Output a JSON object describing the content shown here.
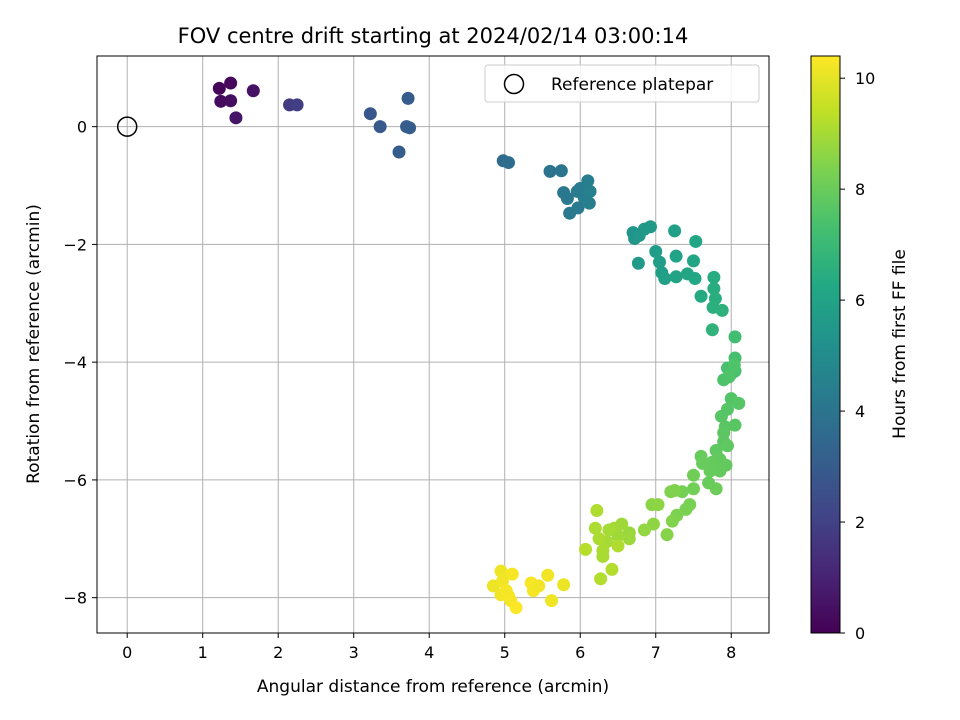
{
  "chart_data": {
    "type": "scatter",
    "title": "FOV centre drift starting at 2024/02/14 03:00:14",
    "xlabel": "Angular distance from reference (arcmin)",
    "ylabel": "Rotation from reference (arcmin)",
    "xlim": [
      -0.4,
      8.5
    ],
    "ylim": [
      -8.6,
      1.2
    ],
    "xticks": [
      0,
      1,
      2,
      3,
      4,
      5,
      6,
      7,
      8
    ],
    "yticks": [
      0,
      -2,
      -4,
      -6,
      -8
    ],
    "grid": true,
    "legend": {
      "label": "Reference platepar",
      "position": "top-right"
    },
    "reference_point": {
      "x": 0,
      "y": 0
    },
    "colorbar": {
      "label": "Hours from first FF file",
      "colormap": "viridis",
      "range": [
        0,
        10.4
      ],
      "ticks": [
        0,
        2,
        4,
        6,
        8,
        10
      ]
    },
    "points": [
      {
        "x": 1.22,
        "y": 0.65,
        "c": 0.1
      },
      {
        "x": 1.37,
        "y": 0.74,
        "c": 0.2
      },
      {
        "x": 1.24,
        "y": 0.43,
        "c": 0.3
      },
      {
        "x": 1.37,
        "y": 0.44,
        "c": 0.4
      },
      {
        "x": 1.67,
        "y": 0.61,
        "c": 0.5
      },
      {
        "x": 1.44,
        "y": 0.15,
        "c": 0.6
      },
      {
        "x": 2.15,
        "y": 0.37,
        "c": 1.8
      },
      {
        "x": 2.25,
        "y": 0.37,
        "c": 1.9
      },
      {
        "x": 3.22,
        "y": 0.22,
        "c": 2.8
      },
      {
        "x": 3.35,
        "y": 0.0,
        "c": 2.9
      },
      {
        "x": 3.72,
        "y": 0.48,
        "c": 3.0
      },
      {
        "x": 3.7,
        "y": 0.0,
        "c": 3.05
      },
      {
        "x": 3.74,
        "y": -0.02,
        "c": 3.1
      },
      {
        "x": 3.6,
        "y": -0.43,
        "c": 3.0
      },
      {
        "x": 4.98,
        "y": -0.58,
        "c": 3.6
      },
      {
        "x": 5.05,
        "y": -0.61,
        "c": 3.7
      },
      {
        "x": 5.6,
        "y": -0.76,
        "c": 4.0
      },
      {
        "x": 5.75,
        "y": -0.75,
        "c": 4.05
      },
      {
        "x": 5.78,
        "y": -1.12,
        "c": 4.1
      },
      {
        "x": 5.83,
        "y": -1.22,
        "c": 4.15
      },
      {
        "x": 5.86,
        "y": -1.47,
        "c": 4.2
      },
      {
        "x": 5.97,
        "y": -1.38,
        "c": 4.25
      },
      {
        "x": 6.0,
        "y": -1.05,
        "c": 4.3
      },
      {
        "x": 6.05,
        "y": -1.2,
        "c": 4.35
      },
      {
        "x": 6.1,
        "y": -0.92,
        "c": 4.4
      },
      {
        "x": 6.12,
        "y": -1.3,
        "c": 4.45
      },
      {
        "x": 6.13,
        "y": -1.1,
        "c": 4.5
      },
      {
        "x": 5.96,
        "y": -1.1,
        "c": 4.3
      },
      {
        "x": 6.7,
        "y": -1.8,
        "c": 5.4
      },
      {
        "x": 6.72,
        "y": -1.9,
        "c": 5.45
      },
      {
        "x": 6.85,
        "y": -1.74,
        "c": 5.5
      },
      {
        "x": 6.93,
        "y": -1.7,
        "c": 5.55
      },
      {
        "x": 6.78,
        "y": -1.85,
        "c": 5.5
      },
      {
        "x": 6.77,
        "y": -2.32,
        "c": 5.6
      },
      {
        "x": 7.0,
        "y": -2.12,
        "c": 5.7
      },
      {
        "x": 7.05,
        "y": -2.3,
        "c": 5.75
      },
      {
        "x": 7.08,
        "y": -2.48,
        "c": 5.8
      },
      {
        "x": 7.12,
        "y": -2.58,
        "c": 5.85
      },
      {
        "x": 7.25,
        "y": -1.77,
        "c": 5.9
      },
      {
        "x": 7.27,
        "y": -2.2,
        "c": 5.95
      },
      {
        "x": 7.27,
        "y": -2.55,
        "c": 6.0
      },
      {
        "x": 7.42,
        "y": -2.5,
        "c": 6.05
      },
      {
        "x": 7.5,
        "y": -2.28,
        "c": 6.1
      },
      {
        "x": 7.53,
        "y": -1.95,
        "c": 6.15
      },
      {
        "x": 7.52,
        "y": -2.58,
        "c": 6.2
      },
      {
        "x": 7.6,
        "y": -2.88,
        "c": 6.3
      },
      {
        "x": 7.77,
        "y": -2.56,
        "c": 6.4
      },
      {
        "x": 7.77,
        "y": -2.75,
        "c": 6.45
      },
      {
        "x": 7.79,
        "y": -2.92,
        "c": 6.5
      },
      {
        "x": 7.76,
        "y": -3.07,
        "c": 6.55
      },
      {
        "x": 7.88,
        "y": -3.12,
        "c": 6.6
      },
      {
        "x": 7.75,
        "y": -3.45,
        "c": 6.7
      },
      {
        "x": 8.05,
        "y": -3.57,
        "c": 7.2
      },
      {
        "x": 8.05,
        "y": -3.93,
        "c": 7.3
      },
      {
        "x": 7.95,
        "y": -4.1,
        "c": 7.35
      },
      {
        "x": 8.0,
        "y": -4.2,
        "c": 7.4
      },
      {
        "x": 8.05,
        "y": -4.15,
        "c": 7.4
      },
      {
        "x": 7.9,
        "y": -4.3,
        "c": 7.45
      },
      {
        "x": 7.97,
        "y": -4.25,
        "c": 7.5
      },
      {
        "x": 8.04,
        "y": -4.05,
        "c": 7.5
      },
      {
        "x": 8.0,
        "y": -4.62,
        "c": 7.55
      },
      {
        "x": 8.1,
        "y": -4.7,
        "c": 7.6
      },
      {
        "x": 7.95,
        "y": -4.8,
        "c": 7.6
      },
      {
        "x": 7.87,
        "y": -4.92,
        "c": 7.65
      },
      {
        "x": 8.05,
        "y": -5.07,
        "c": 7.7
      },
      {
        "x": 7.92,
        "y": -5.1,
        "c": 7.7
      },
      {
        "x": 7.9,
        "y": -5.2,
        "c": 7.75
      },
      {
        "x": 7.9,
        "y": -5.35,
        "c": 7.75
      },
      {
        "x": 7.95,
        "y": -5.42,
        "c": 7.8
      },
      {
        "x": 7.8,
        "y": -5.5,
        "c": 7.8
      },
      {
        "x": 7.85,
        "y": -5.65,
        "c": 7.85
      },
      {
        "x": 7.93,
        "y": -5.75,
        "c": 7.85
      },
      {
        "x": 7.85,
        "y": -5.85,
        "c": 7.9
      },
      {
        "x": 7.75,
        "y": -5.7,
        "c": 7.9
      },
      {
        "x": 7.72,
        "y": -5.85,
        "c": 7.95
      },
      {
        "x": 7.6,
        "y": -5.6,
        "c": 7.95
      },
      {
        "x": 7.62,
        "y": -5.72,
        "c": 8.0
      },
      {
        "x": 7.7,
        "y": -6.05,
        "c": 8.0
      },
      {
        "x": 7.8,
        "y": -6.15,
        "c": 8.05
      },
      {
        "x": 7.5,
        "y": -5.92,
        "c": 8.1
      },
      {
        "x": 7.5,
        "y": -6.15,
        "c": 8.15
      },
      {
        "x": 7.35,
        "y": -6.2,
        "c": 8.2
      },
      {
        "x": 7.45,
        "y": -6.42,
        "c": 8.25
      },
      {
        "x": 7.4,
        "y": -6.5,
        "c": 8.3
      },
      {
        "x": 7.28,
        "y": -6.6,
        "c": 8.35
      },
      {
        "x": 7.2,
        "y": -6.2,
        "c": 8.4
      },
      {
        "x": 7.25,
        "y": -6.18,
        "c": 8.4
      },
      {
        "x": 7.22,
        "y": -6.7,
        "c": 8.45
      },
      {
        "x": 7.15,
        "y": -6.93,
        "c": 8.5
      },
      {
        "x": 6.95,
        "y": -6.42,
        "c": 8.55
      },
      {
        "x": 7.03,
        "y": -6.42,
        "c": 8.6
      },
      {
        "x": 6.97,
        "y": -6.75,
        "c": 8.65
      },
      {
        "x": 6.85,
        "y": -6.85,
        "c": 8.7
      },
      {
        "x": 6.65,
        "y": -6.9,
        "c": 8.8
      },
      {
        "x": 6.65,
        "y": -7.0,
        "c": 8.85
      },
      {
        "x": 6.55,
        "y": -6.75,
        "c": 8.9
      },
      {
        "x": 6.5,
        "y": -6.95,
        "c": 8.9
      },
      {
        "x": 6.45,
        "y": -6.82,
        "c": 8.95
      },
      {
        "x": 6.38,
        "y": -6.85,
        "c": 9.0
      },
      {
        "x": 6.35,
        "y": -7.05,
        "c": 9.0
      },
      {
        "x": 6.3,
        "y": -7.2,
        "c": 9.05
      },
      {
        "x": 6.3,
        "y": -7.3,
        "c": 9.05
      },
      {
        "x": 6.25,
        "y": -7.0,
        "c": 9.1
      },
      {
        "x": 6.2,
        "y": -6.82,
        "c": 9.1
      },
      {
        "x": 6.22,
        "y": -6.52,
        "c": 9.15
      },
      {
        "x": 6.5,
        "y": -7.12,
        "c": 9.15
      },
      {
        "x": 6.42,
        "y": -7.52,
        "c": 9.2
      },
      {
        "x": 6.27,
        "y": -7.68,
        "c": 9.2
      },
      {
        "x": 6.07,
        "y": -7.18,
        "c": 9.25
      },
      {
        "x": 4.85,
        "y": -7.8,
        "c": 10.1
      },
      {
        "x": 4.95,
        "y": -7.55,
        "c": 10.15
      },
      {
        "x": 4.97,
        "y": -7.72,
        "c": 10.2
      },
      {
        "x": 4.95,
        "y": -7.95,
        "c": 10.2
      },
      {
        "x": 5.02,
        "y": -7.88,
        "c": 10.25
      },
      {
        "x": 5.05,
        "y": -7.97,
        "c": 10.25
      },
      {
        "x": 5.08,
        "y": -8.05,
        "c": 10.3
      },
      {
        "x": 5.1,
        "y": -7.6,
        "c": 10.3
      },
      {
        "x": 5.15,
        "y": -8.17,
        "c": 10.35
      },
      {
        "x": 5.35,
        "y": -7.75,
        "c": 10.3
      },
      {
        "x": 5.38,
        "y": -7.88,
        "c": 10.25
      },
      {
        "x": 5.45,
        "y": -7.8,
        "c": 10.2
      },
      {
        "x": 5.57,
        "y": -7.62,
        "c": 10.2
      },
      {
        "x": 5.62,
        "y": -8.05,
        "c": 10.15
      },
      {
        "x": 5.78,
        "y": -7.78,
        "c": 10.1
      }
    ]
  }
}
